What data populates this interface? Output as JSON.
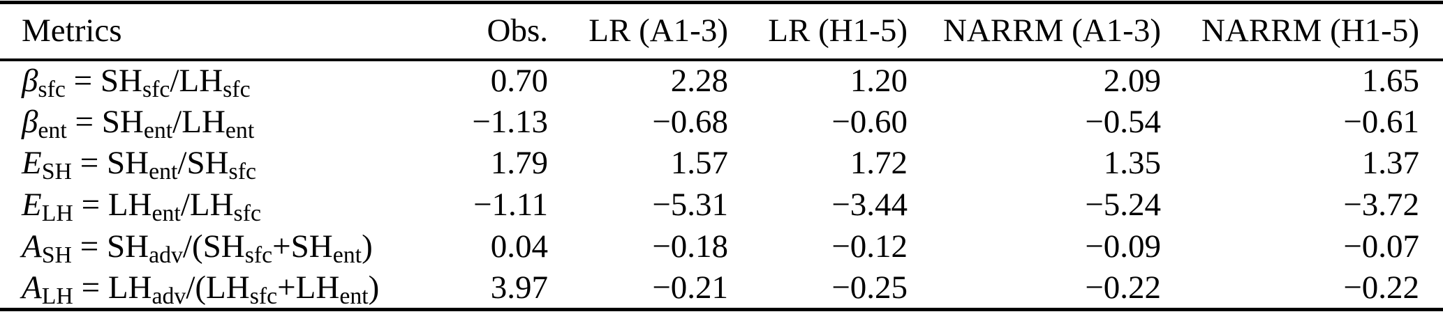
{
  "page": {
    "background": "#ffffff",
    "text_color": "#000000",
    "rule_color": "#000000"
  },
  "table": {
    "headers": [
      {
        "id": "metrics",
        "label": "Metrics",
        "align": "left"
      },
      {
        "id": "obs",
        "label": "Obs.",
        "align": "right"
      },
      {
        "id": "lr-a1-3",
        "label": "LR (A1-3)",
        "align": "right"
      },
      {
        "id": "lr-h1-5",
        "label": "LR (H1-5)",
        "align": "right"
      },
      {
        "id": "narrm-a1-3",
        "label": "NARRM (A1-3)",
        "align": "right"
      },
      {
        "id": "narrm-h1-5",
        "label": "NARRM (H1-5)",
        "align": "right"
      }
    ],
    "rows": [
      {
        "metric": {
          "parts": [
            [
              "i",
              "β"
            ],
            [
              "sub",
              "sfc"
            ],
            [
              "r",
              " = SH"
            ],
            [
              "sub",
              "sfc"
            ],
            [
              "r",
              "/LH"
            ],
            [
              "sub",
              "sfc"
            ]
          ]
        },
        "values": [
          "0.70",
          "2.28",
          "1.20",
          "2.09",
          "1.65"
        ]
      },
      {
        "metric": {
          "parts": [
            [
              "i",
              "β"
            ],
            [
              "sub",
              "ent"
            ],
            [
              "r",
              " = SH"
            ],
            [
              "sub",
              "ent"
            ],
            [
              "r",
              "/LH"
            ],
            [
              "sub",
              "ent"
            ]
          ]
        },
        "values": [
          "−1.13",
          "−0.68",
          "−0.60",
          "−0.54",
          "−0.61"
        ]
      },
      {
        "metric": {
          "parts": [
            [
              "i",
              "E"
            ],
            [
              "sub",
              "SH"
            ],
            [
              "r",
              " = SH"
            ],
            [
              "sub",
              "ent"
            ],
            [
              "r",
              "/SH"
            ],
            [
              "sub",
              "sfc"
            ]
          ]
        },
        "values": [
          "1.79",
          "1.57",
          "1.72",
          "1.35",
          "1.37"
        ]
      },
      {
        "metric": {
          "parts": [
            [
              "i",
              "E"
            ],
            [
              "sub",
              "LH"
            ],
            [
              "r",
              " = LH"
            ],
            [
              "sub",
              "ent"
            ],
            [
              "r",
              "/LH"
            ],
            [
              "sub",
              "sfc"
            ]
          ]
        },
        "values": [
          "−1.11",
          "−5.31",
          "−3.44",
          "−5.24",
          "−3.72"
        ]
      },
      {
        "metric": {
          "parts": [
            [
              "i",
              "A"
            ],
            [
              "sub",
              "SH"
            ],
            [
              "r",
              " = SH"
            ],
            [
              "sub",
              "adv"
            ],
            [
              "r",
              "/(SH"
            ],
            [
              "sub",
              "sfc"
            ],
            [
              "r",
              "+SH"
            ],
            [
              "sub",
              "ent"
            ],
            [
              "r",
              ")"
            ]
          ]
        },
        "values": [
          "0.04",
          "−0.18",
          "−0.12",
          "−0.09",
          "−0.07"
        ]
      },
      {
        "metric": {
          "parts": [
            [
              "i",
              "A"
            ],
            [
              "sub",
              "LH"
            ],
            [
              "r",
              " = LH"
            ],
            [
              "sub",
              "adv"
            ],
            [
              "r",
              "/(LH"
            ],
            [
              "sub",
              "sfc"
            ],
            [
              "r",
              "+LH"
            ],
            [
              "sub",
              "ent"
            ],
            [
              "r",
              ")"
            ]
          ]
        },
        "values": [
          "3.97",
          "−0.21",
          "−0.25",
          "−0.22",
          "−0.22"
        ]
      }
    ]
  }
}
